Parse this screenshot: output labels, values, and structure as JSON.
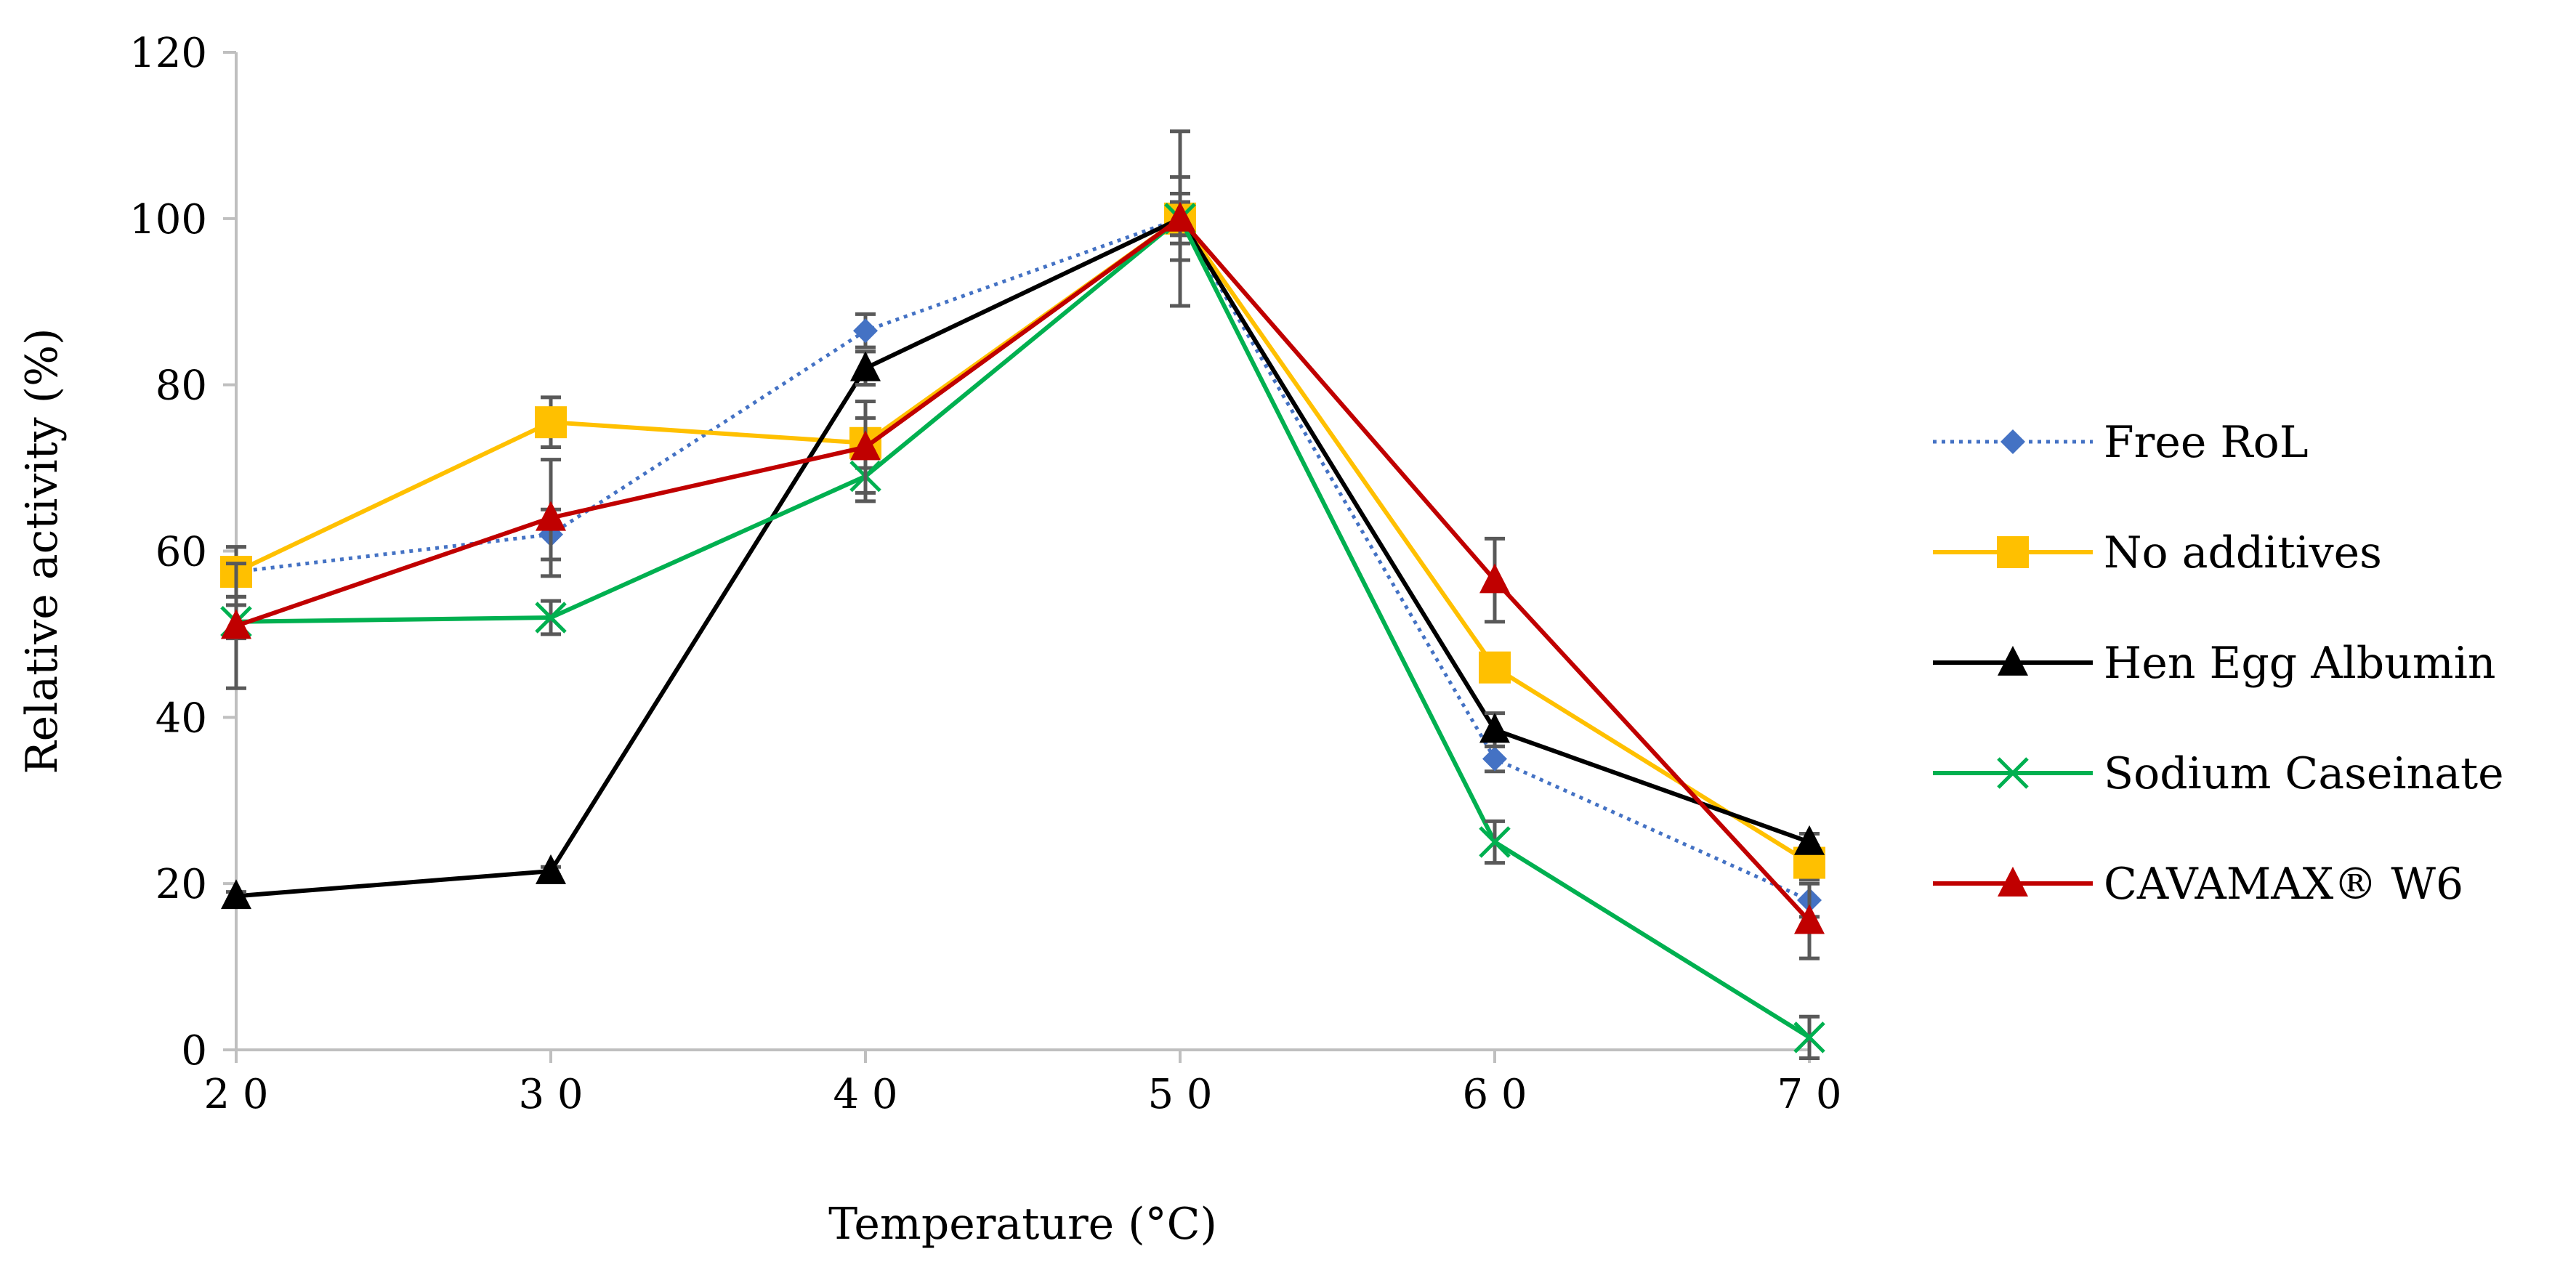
{
  "chart_data": {
    "type": "line",
    "title": "",
    "xlabel": "Temperature (°C)",
    "ylabel": "Relative activity (%)",
    "x": [
      20,
      30,
      40,
      50,
      60,
      70
    ],
    "x_tick_labels": [
      "2 0",
      "3 0",
      "4 0",
      "5 0",
      "6 0",
      "7 0"
    ],
    "xlim": [
      20,
      70
    ],
    "ylim": [
      0,
      120
    ],
    "y_ticks": [
      0,
      20,
      40,
      60,
      80,
      100,
      120
    ],
    "grid": false,
    "legend_position": "right",
    "series": [
      {
        "name": "Free RoL",
        "color": "#4472C4",
        "line_style": "dotted",
        "marker": "diamond",
        "values": [
          57.5,
          62,
          86.5,
          100,
          35,
          18
        ],
        "errors": [
          3,
          3,
          2,
          2,
          1.5,
          2
        ]
      },
      {
        "name": "No additives",
        "color": "#FFC000",
        "line_style": "solid",
        "marker": "square",
        "values": [
          57.5,
          75.5,
          73,
          100,
          46,
          22.5
        ],
        "errors": [
          3,
          3,
          3,
          3,
          1.5,
          2
        ]
      },
      {
        "name": "Hen Egg Albumin",
        "color": "#000000",
        "line_style": "solid",
        "marker": "triangle",
        "values": [
          18.5,
          21.5,
          82,
          100,
          38.5,
          25
        ],
        "errors": [
          0.5,
          0.5,
          2,
          2,
          2,
          1
        ]
      },
      {
        "name": "Sodium Caseinate",
        "color": "#00B050",
        "line_style": "solid",
        "marker": "x",
        "values": [
          51.5,
          52,
          69,
          100,
          25,
          1.5
        ],
        "errors": [
          2,
          2,
          3,
          5,
          2.5,
          2.5
        ]
      },
      {
        "name": "CAVAMAX® W6",
        "color": "#C00000",
        "line_style": "solid",
        "marker": "triangle",
        "values": [
          51,
          64,
          72.5,
          100,
          56.5,
          15.5
        ],
        "errors": [
          7.5,
          7,
          5.5,
          10.5,
          5,
          4.5
        ]
      }
    ]
  }
}
